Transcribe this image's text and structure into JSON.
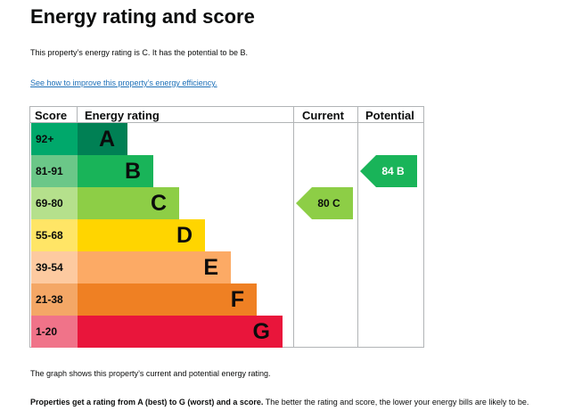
{
  "title": "Energy rating and score",
  "summary": "This property’s energy rating is C. It has the potential to be B.",
  "link_text": "See how to improve this property’s energy efficiency.",
  "table": {
    "headers": {
      "score": "Score",
      "rating": "Energy rating",
      "current": "Current",
      "potential": "Potential"
    },
    "bands": [
      {
        "score": "92+",
        "letter": "A",
        "color": "#008054",
        "score_bg": "#00a86b"
      },
      {
        "score": "81-91",
        "letter": "B",
        "color": "#19b459",
        "score_bg": "#6bc788"
      },
      {
        "score": "69-80",
        "letter": "C",
        "color": "#8dce46",
        "score_bg": "#b5e08c"
      },
      {
        "score": "55-68",
        "letter": "D",
        "color": "#ffd500",
        "score_bg": "#ffe566"
      },
      {
        "score": "39-54",
        "letter": "E",
        "color": "#fcaa65",
        "score_bg": "#fdcaa0"
      },
      {
        "score": "21-38",
        "letter": "F",
        "color": "#ef8023",
        "score_bg": "#f4a766"
      },
      {
        "score": "1-20",
        "letter": "G",
        "color": "#e9153b",
        "score_bg": "#f07389"
      }
    ],
    "current": {
      "label": "80 C",
      "band": "C",
      "color": "#8dce46"
    },
    "potential": {
      "label": "84 B",
      "band": "B",
      "color": "#19b459"
    }
  },
  "note": "The graph shows this property’s current and potential energy rating.",
  "explain_bold": "Properties get a rating from A (best) to G (worst) and a score.",
  "explain_rest": " The better the rating and score, the lower your energy bills are likely to be."
}
